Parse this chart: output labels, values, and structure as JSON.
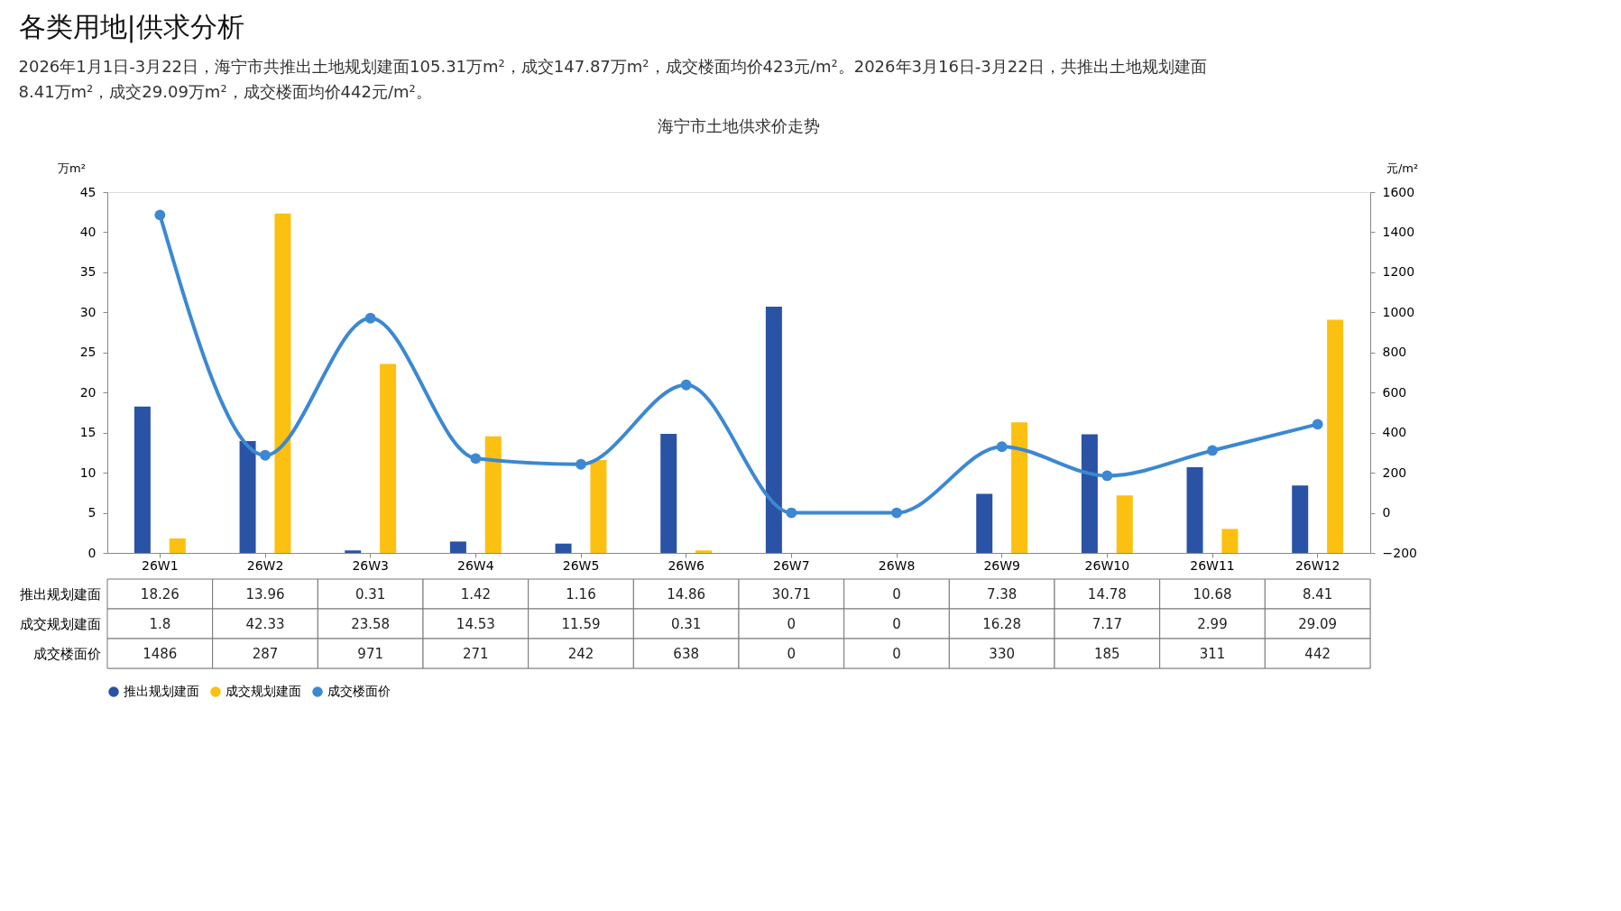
{
  "chart_data": {
    "type": "bar",
    "title": "海宁市土地供求价走势",
    "annotations": [
      "各类用地|供求分析",
      "2026年1月1日-3月22日，海宁市共推出土地规划建面105.31万m²，成交147.87万m²，成交楼面均价423元/m²。2026年3月16日-3月22日，共推出土地规划建面8.41万m²，成交29.09万m²，成交楼面均价442元/m²。"
    ],
    "ylabel": "万m²",
    "y2label": "元/m²",
    "categories": [
      "26W1",
      "26W2",
      "26W3",
      "26W4",
      "26W5",
      "26W6",
      "26W7",
      "26W8",
      "26W9",
      "26W10",
      "26W11",
      "26W12"
    ],
    "series": [
      {
        "name": "推出规划建面",
        "color": "#2a53a6",
        "values": [
          18.26,
          13.96,
          0.31,
          1.42,
          1.16,
          14.86,
          30.71,
          0,
          7.38,
          14.78,
          10.68,
          8.41
        ]
      },
      {
        "name": "成交规划建面",
        "color": "#fcc010",
        "values": [
          1.8,
          42.33,
          23.58,
          14.53,
          11.59,
          0.31,
          0,
          0,
          16.28,
          7.17,
          2.99,
          29.09
        ]
      },
      {
        "name": "成交楼面价",
        "type": "line",
        "axis": "y2",
        "color": "#3c88d2",
        "values": [
          1486,
          287,
          971,
          271,
          242,
          638,
          0,
          0,
          330,
          185,
          311,
          442
        ]
      }
    ],
    "ylim": [
      0,
      45
    ],
    "yticks": [
      0,
      5,
      10,
      15,
      20,
      25,
      30,
      35,
      40,
      45
    ],
    "y2lim": [
      -200,
      1600
    ],
    "y2ticks": [
      -200,
      0,
      200,
      400,
      600,
      800,
      1000,
      1200,
      1400,
      1600
    ],
    "data_labels": true,
    "legend": "bottom",
    "marker": "circle",
    "grid": false
  }
}
